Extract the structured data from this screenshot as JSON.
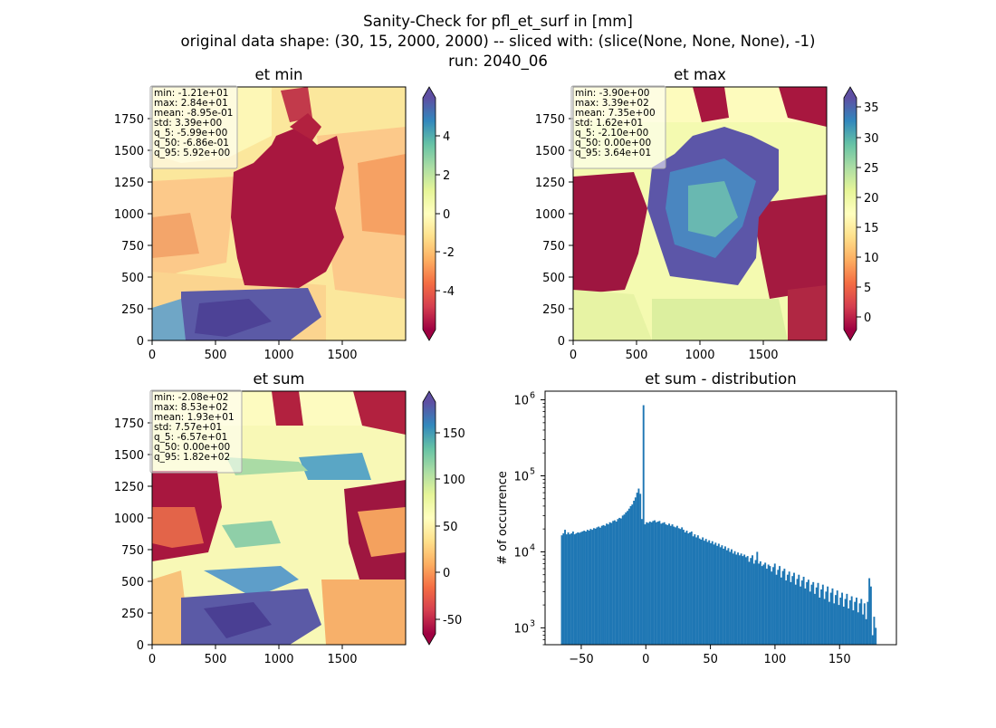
{
  "suptitle": {
    "line1": "Sanity-Check for pfl_et_surf in [mm]",
    "line2": "original data shape: (30, 15, 2000, 2000) -- sliced with: (slice(None, None, None), -1)",
    "line3": "run: 2040_06"
  },
  "colormap": "Spectral",
  "chart_data": [
    {
      "type": "heatmap",
      "title": "et min",
      "cmap": "Spectral",
      "x_ticks": [
        0,
        500,
        1000,
        1500
      ],
      "y_ticks": [
        0,
        250,
        500,
        750,
        1000,
        1250,
        1500,
        1750
      ],
      "xlim": [
        0,
        2000
      ],
      "ylim": [
        0,
        2000
      ],
      "colorbar": {
        "range": [
          -6,
          6
        ],
        "ticks": [
          -4,
          -2,
          0,
          2,
          4
        ],
        "extend": "both"
      },
      "stats": [
        "min: -1.21e+01",
        "max: 2.84e+01",
        "mean: -8.95e-01",
        "std: 3.39e+00",
        "q_5: -5.99e+00",
        "q_50: -6.86e-01",
        "q_95: 5.92e+00"
      ]
    },
    {
      "type": "heatmap",
      "title": "et max",
      "cmap": "Spectral",
      "x_ticks": [
        0,
        500,
        1000,
        1500
      ],
      "y_ticks": [
        0,
        250,
        500,
        750,
        1000,
        1250,
        1500,
        1750
      ],
      "xlim": [
        0,
        2000
      ],
      "ylim": [
        0,
        2000
      ],
      "colorbar": {
        "range": [
          -3.9,
          37.5
        ],
        "ticks": [
          0,
          5,
          10,
          15,
          20,
          25,
          30,
          35
        ],
        "extend": "both"
      },
      "stats": [
        "min: -3.90e+00",
        "max: 3.39e+02",
        "mean: 7.35e+00",
        "std: 1.62e+01",
        "q_5: -2.10e+00",
        "q_50: 0.00e+00",
        "q_95: 3.64e+01"
      ]
    },
    {
      "type": "heatmap",
      "title": "et sum",
      "cmap": "Spectral",
      "x_ticks": [
        0,
        500,
        1000,
        1500
      ],
      "y_ticks": [
        0,
        250,
        500,
        750,
        1000,
        1250,
        1500,
        1750
      ],
      "xlim": [
        0,
        2000
      ],
      "ylim": [
        0,
        2000
      ],
      "colorbar": {
        "range": [
          -72,
          187
        ],
        "ticks": [
          -50,
          0,
          50,
          100,
          150
        ],
        "extend": "both"
      },
      "stats": [
        "min: -2.08e+02",
        "max: 8.53e+02",
        "mean: 1.93e+01",
        "std: 7.57e+01",
        "q_5: -6.57e+01",
        "q_50: 0.00e+00",
        "q_95: 1.82e+02"
      ]
    },
    {
      "type": "bar",
      "title": "et sum - distribution",
      "xlabel": "",
      "ylabel": "# of occurrence",
      "yscale": "log",
      "xlim": [
        -78,
        194
      ],
      "ylim": [
        600,
        1300000
      ],
      "x_ticks": [
        -50,
        0,
        50,
        100,
        150
      ],
      "y_ticks": [
        {
          "value": 1000,
          "base": "10",
          "exp": "3"
        },
        {
          "value": 10000,
          "base": "10",
          "exp": "4"
        },
        {
          "value": 100000,
          "base": "10",
          "exp": "5"
        },
        {
          "value": 1000000,
          "base": "10",
          "exp": "6"
        }
      ],
      "bin_start": -65.7,
      "bin_width": 1.24,
      "color": "#1f77b4",
      "values": [
        16500,
        17500,
        19500,
        17000,
        18000,
        17000,
        17500,
        18500,
        17000,
        17500,
        18000,
        17800,
        18200,
        18600,
        19000,
        18500,
        19500,
        19000,
        20000,
        19500,
        20500,
        20200,
        21000,
        21500,
        20800,
        22000,
        22500,
        22000,
        23500,
        23000,
        24500,
        24000,
        25500,
        26000,
        25000,
        27000,
        28000,
        27500,
        30000,
        31000,
        33000,
        34500,
        37000,
        40000,
        42000,
        47000,
        52000,
        60000,
        68000,
        58000,
        27000,
        850000,
        23000,
        24500,
        24000,
        25000,
        24500,
        25500,
        26000,
        24500,
        25000,
        25500,
        23500,
        24000,
        24500,
        23000,
        22500,
        23500,
        22000,
        23000,
        21500,
        21000,
        22000,
        20500,
        20000,
        21000,
        19500,
        18000,
        19000,
        17500,
        18000,
        18500,
        16000,
        17000,
        15500,
        16500,
        15000,
        14500,
        15500,
        14000,
        14800,
        13500,
        14200,
        13000,
        13800,
        12500,
        13200,
        12000,
        12800,
        11500,
        12200,
        11000,
        11800,
        10500,
        11200,
        10000,
        10800,
        9500,
        10200,
        9200,
        9800,
        9000,
        9500,
        8800,
        9200,
        8500,
        8800,
        7400,
        8300,
        9000,
        7000,
        7800,
        10000,
        7000,
        7500,
        6500,
        6800,
        7200,
        6000,
        6800,
        6500,
        5500,
        6300,
        7000,
        5000,
        5800,
        6500,
        4600,
        5600,
        6000,
        4200,
        5000,
        5500,
        4000,
        4800,
        5300,
        3700,
        4400,
        5000,
        3500,
        4200,
        4700,
        3300,
        4000,
        4300,
        3000,
        3700,
        4000,
        2800,
        3400,
        3900,
        2500,
        3200,
        3700,
        2400,
        3000,
        3500,
        2200,
        2900,
        3300,
        2100,
        2700,
        3100,
        2000,
        2500,
        2900,
        1900,
        2400,
        2800,
        1800,
        2300,
        2600,
        1700,
        2200,
        2500,
        1600,
        2100,
        2400,
        1500,
        2100,
        1300,
        2200,
        4500,
        3500,
        800,
        1400,
        1000
      ]
    }
  ]
}
